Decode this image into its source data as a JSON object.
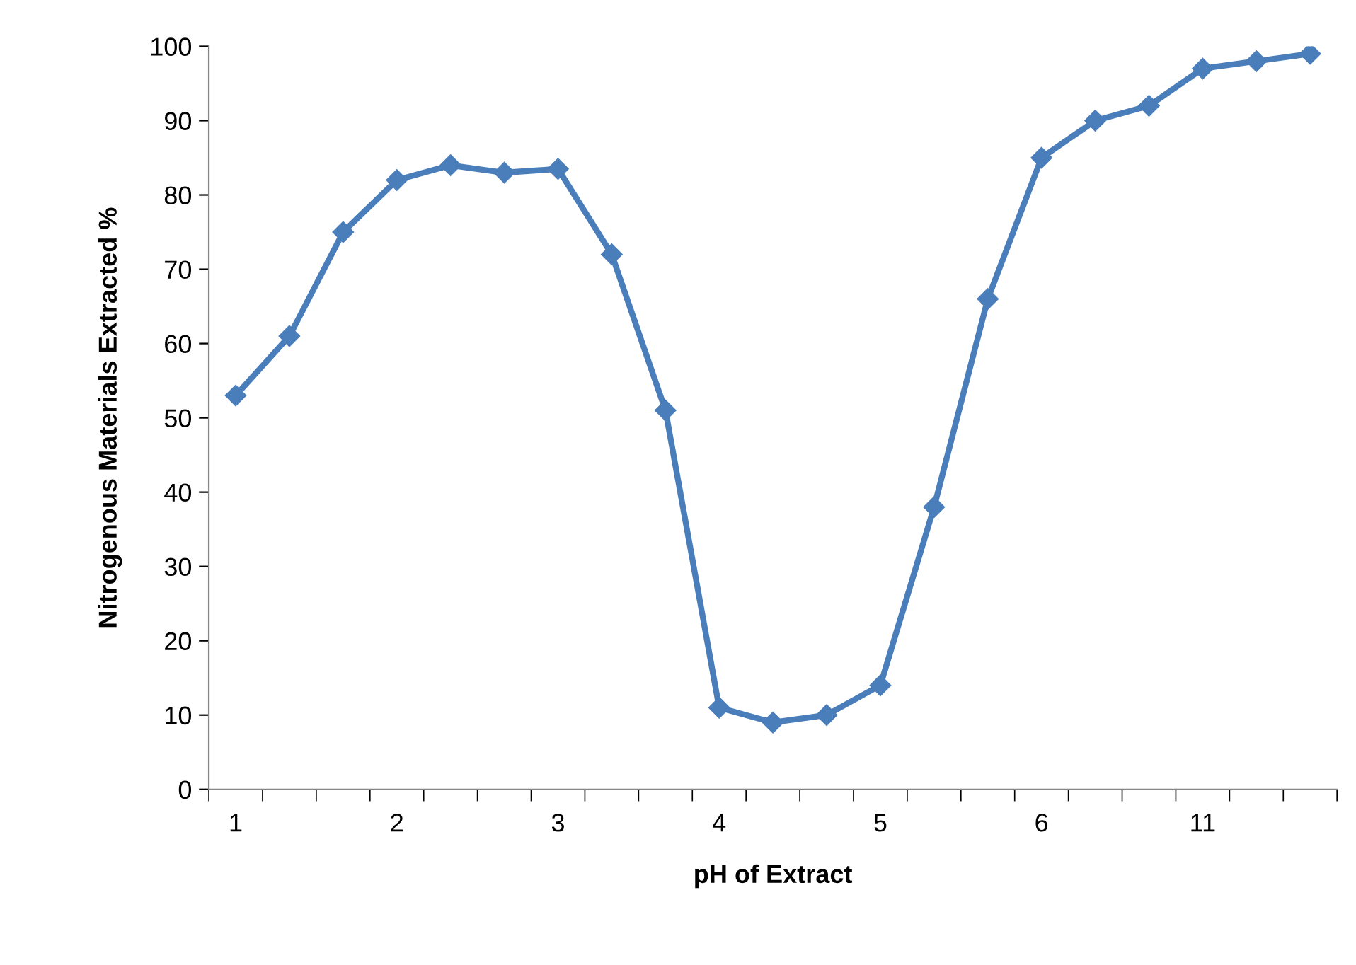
{
  "chart_data": {
    "type": "line",
    "xlabel": "pH of Extract",
    "ylabel": "Nitrogenous Materials Extracted %",
    "categories": [
      "1",
      null,
      null,
      "2",
      null,
      null,
      "3",
      null,
      null,
      "4",
      null,
      null,
      "5",
      null,
      null,
      "6",
      null,
      null,
      "11",
      null,
      null
    ],
    "series": [
      {
        "color": "#4a7ebb",
        "values": [
          53,
          61,
          75,
          82,
          84,
          83,
          83.5,
          72,
          51,
          11,
          9,
          10,
          14,
          38,
          66,
          85,
          90,
          92,
          97,
          98,
          99
        ]
      }
    ],
    "ylim": [
      0,
      100
    ],
    "yticks": [
      0,
      10,
      20,
      30,
      40,
      50,
      60,
      70,
      80,
      90,
      100
    ],
    "grid": false,
    "marker": "diamond",
    "line_style": "solid"
  }
}
